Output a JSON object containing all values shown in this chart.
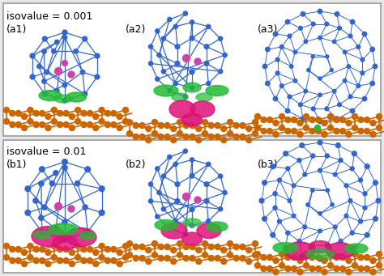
{
  "fig_width": 4.74,
  "fig_height": 3.41,
  "dpi": 100,
  "bg_color": "#e8e8e8",
  "panel_bg": "#ffffff",
  "border_color": "#999999",
  "top_row_label": "isovalue = 0.001",
  "bottom_row_label": "isovalue = 0.01",
  "panel_labels": [
    "(a1)",
    "(a2)",
    "(a3)",
    "(b1)",
    "(b2)",
    "(b3)"
  ],
  "label_fontsize": 9,
  "row_label_fontsize": 9,
  "blue_atom": "#3366cc",
  "pink_atom": "#cc44aa",
  "orange_atom": "#cc6600",
  "green_blob": "#22bb33",
  "pink_blob": "#dd1177"
}
